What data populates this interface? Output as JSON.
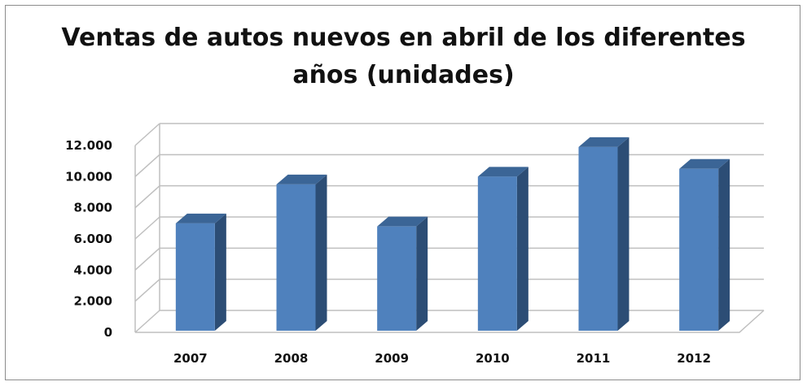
{
  "chart_data": {
    "type": "bar",
    "title_lines": [
      "Ventas de autos nuevos en abril de los diferentes",
      "años (unidades)"
    ],
    "categories": [
      "2007",
      "2008",
      "2009",
      "2010",
      "2011",
      "2012"
    ],
    "values": [
      7000,
      9500,
      6800,
      10000,
      11900,
      10500
    ],
    "y_ticks": [
      "0",
      "2.000",
      "4.000",
      "6.000",
      "8.000",
      "10.000",
      "12.000"
    ],
    "ylim": [
      0,
      12000
    ],
    "grid": true,
    "legend": "none",
    "colors": {
      "bar_front": "#4f81bd",
      "bar_side": "#2c4d75",
      "bar_top": "#3b6596",
      "grid": "#bfbfbf"
    }
  }
}
